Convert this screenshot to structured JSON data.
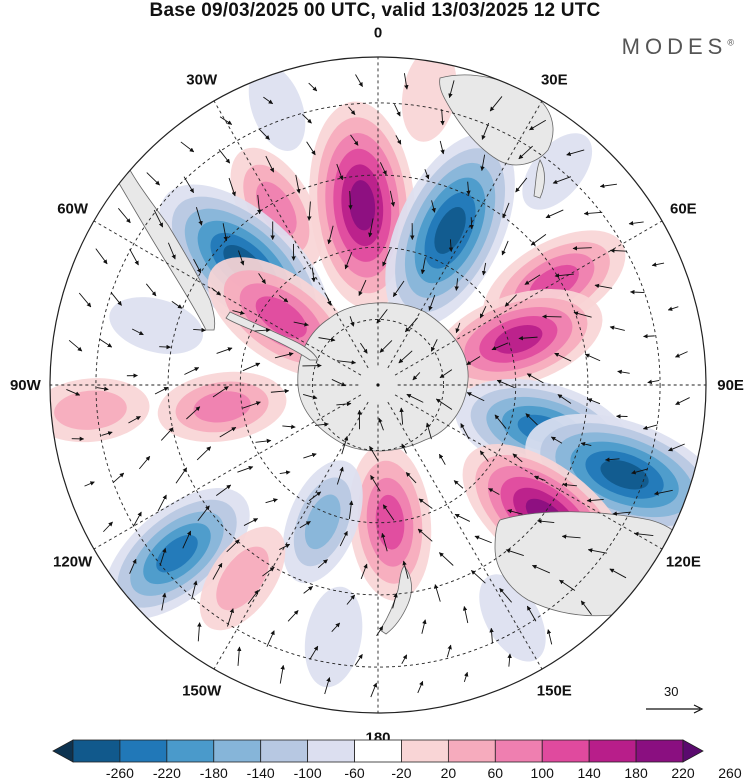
{
  "title": "Base 09/03/2025 00 UTC, valid 13/03/2025 12 UTC",
  "brand": "MODES",
  "brand_mark": "®",
  "longitude_labels": [
    {
      "text": "0",
      "lon": 0
    },
    {
      "text": "30E",
      "lon": 30
    },
    {
      "text": "60E",
      "lon": 60
    },
    {
      "text": "90E",
      "lon": 90
    },
    {
      "text": "120E",
      "lon": 120
    },
    {
      "text": "150E",
      "lon": 150
    },
    {
      "text": "180",
      "lon": 180
    },
    {
      "text": "150W",
      "lon": -150
    },
    {
      "text": "120W",
      "lon": -120
    },
    {
      "text": "90W",
      "lon": -90
    },
    {
      "text": "60W",
      "lon": -60
    },
    {
      "text": "30W",
      "lon": -30
    }
  ],
  "reference_vector": {
    "label": "30"
  },
  "colorbar": {
    "labels": [
      "-260",
      "-220",
      "-180",
      "-140",
      "-100",
      "-60",
      "-20",
      "20",
      "60",
      "100",
      "140",
      "180",
      "220",
      "260"
    ],
    "colors": [
      "#0d3350",
      "#11598c",
      "#2178b8",
      "#4a9acb",
      "#86b5d9",
      "#b7c8e2",
      "#dcdff0",
      "#ffffff",
      "#f9d5d6",
      "#f6abbd",
      "#ef7fb0",
      "#e04a9e",
      "#b81e8a",
      "#8a0f80",
      "#5a0a6e"
    ]
  },
  "map": {
    "projection": "south-polar-stereographic",
    "anomalies": [
      {
        "lon": -5,
        "rho": 0.55,
        "value": 250
      },
      {
        "lon": -30,
        "rho": 0.62,
        "value": 120
      },
      {
        "lon": -48,
        "rho": 0.55,
        "value": -250
      },
      {
        "lon": -55,
        "rho": 0.36,
        "value": 180
      },
      {
        "lon": 25,
        "rho": 0.52,
        "value": -250
      },
      {
        "lon": 60,
        "rho": 0.62,
        "value": 160
      },
      {
        "lon": 72,
        "rho": 0.45,
        "value": 190
      },
      {
        "lon": 105,
        "rho": 0.52,
        "value": -200
      },
      {
        "lon": 110,
        "rho": 0.8,
        "value": -250
      },
      {
        "lon": 128,
        "rho": 0.65,
        "value": 230
      },
      {
        "lon": 175,
        "rho": 0.42,
        "value": 160
      },
      {
        "lon": -158,
        "rho": 0.45,
        "value": -110
      },
      {
        "lon": -130,
        "rho": 0.8,
        "value": -190
      },
      {
        "lon": -145,
        "rho": 0.72,
        "value": 90
      },
      {
        "lon": -98,
        "rho": 0.48,
        "value": 110
      },
      {
        "lon": -95,
        "rho": 0.88,
        "value": 90
      },
      {
        "lon": -170,
        "rho": 0.78,
        "value": -60
      },
      {
        "lon": 150,
        "rho": 0.82,
        "value": -50
      },
      {
        "lon": -20,
        "rho": 0.9,
        "value": -40
      },
      {
        "lon": 10,
        "rho": 0.9,
        "value": 50
      },
      {
        "lon": 40,
        "rho": 0.85,
        "value": -40
      },
      {
        "lon": -75,
        "rho": 0.7,
        "value": -50
      }
    ]
  }
}
